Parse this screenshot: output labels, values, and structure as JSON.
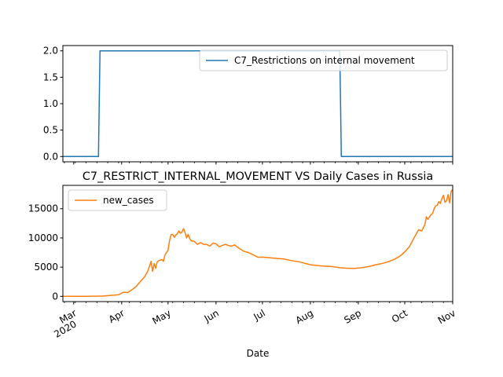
{
  "chart_data": [
    {
      "type": "line",
      "title": "",
      "xlabel": "",
      "ylabel": "",
      "ylim": [
        -0.1,
        2.1
      ],
      "yticks": [
        0.0,
        0.5,
        1.0,
        1.5,
        2.0
      ],
      "ytick_labels": [
        "0.0",
        "0.5",
        "1.0",
        "1.5",
        "2.0"
      ],
      "grid": false,
      "legend": "upper right",
      "series": [
        {
          "name": "C7_Restrictions on internal movement",
          "color": "#1f77b4",
          "x": [
            "2020-02-23",
            "2020-03-17",
            "2020-03-18",
            "2020-08-20",
            "2020-08-21",
            "2020-11-01"
          ],
          "values": [
            0,
            0,
            2,
            2,
            0,
            0
          ]
        }
      ]
    },
    {
      "type": "line",
      "title": "C7_RESTRICT_INTERNAL_MOVEMENT VS Daily Cases in Russia",
      "xlabel": "Date",
      "ylabel": "",
      "ylim": [
        -900,
        19000
      ],
      "yticks": [
        0,
        5000,
        10000,
        15000
      ],
      "ytick_labels": [
        "0",
        "5000",
        "10000",
        "15000"
      ],
      "grid": false,
      "legend": "upper left",
      "xlim": [
        "2020-02-23",
        "2020-11-01"
      ],
      "xticks": [
        {
          "date": "2020-03-01",
          "label": "Mar",
          "sublabel": "2020"
        },
        {
          "date": "2020-04-01",
          "label": "Apr"
        },
        {
          "date": "2020-05-01",
          "label": "May"
        },
        {
          "date": "2020-06-01",
          "label": "Jun"
        },
        {
          "date": "2020-07-01",
          "label": "Jul"
        },
        {
          "date": "2020-08-01",
          "label": "Aug"
        },
        {
          "date": "2020-09-01",
          "label": "Sep"
        },
        {
          "date": "2020-10-01",
          "label": "Oct"
        },
        {
          "date": "2020-11-01",
          "label": "Nov"
        }
      ],
      "series": [
        {
          "name": "new_cases",
          "color": "#ff7f0e",
          "x": [
            "2020-02-23",
            "2020-03-01",
            "2020-03-10",
            "2020-03-20",
            "2020-03-25",
            "2020-03-30",
            "2020-04-02",
            "2020-04-05",
            "2020-04-08",
            "2020-04-10",
            "2020-04-13",
            "2020-04-16",
            "2020-04-18",
            "2020-04-20",
            "2020-04-21",
            "2020-04-22",
            "2020-04-23",
            "2020-04-24",
            "2020-04-25",
            "2020-04-27",
            "2020-04-28",
            "2020-04-29",
            "2020-05-01",
            "2020-05-02",
            "2020-05-03",
            "2020-05-04",
            "2020-05-05",
            "2020-05-06",
            "2020-05-07",
            "2020-05-08",
            "2020-05-09",
            "2020-05-10",
            "2020-05-11",
            "2020-05-12",
            "2020-05-13",
            "2020-05-14",
            "2020-05-15",
            "2020-05-16",
            "2020-05-18",
            "2020-05-20",
            "2020-05-22",
            "2020-05-24",
            "2020-05-26",
            "2020-05-28",
            "2020-05-30",
            "2020-06-01",
            "2020-06-03",
            "2020-06-05",
            "2020-06-07",
            "2020-06-09",
            "2020-06-11",
            "2020-06-13",
            "2020-06-16",
            "2020-06-19",
            "2020-06-22",
            "2020-06-25",
            "2020-06-28",
            "2020-07-02",
            "2020-07-06",
            "2020-07-10",
            "2020-07-15",
            "2020-07-20",
            "2020-07-25",
            "2020-08-01",
            "2020-08-08",
            "2020-08-15",
            "2020-08-20",
            "2020-08-25",
            "2020-08-30",
            "2020-09-03",
            "2020-09-08",
            "2020-09-12",
            "2020-09-16",
            "2020-09-20",
            "2020-09-24",
            "2020-09-28",
            "2020-10-01",
            "2020-10-04",
            "2020-10-07",
            "2020-10-10",
            "2020-10-12",
            "2020-10-14",
            "2020-10-15",
            "2020-10-16",
            "2020-10-18",
            "2020-10-19",
            "2020-10-20",
            "2020-10-21",
            "2020-10-22",
            "2020-10-23",
            "2020-10-24",
            "2020-10-25",
            "2020-10-26",
            "2020-10-27",
            "2020-10-28",
            "2020-10-29",
            "2020-10-30",
            "2020-10-31",
            "2020-11-01"
          ],
          "values": [
            0,
            2,
            6,
            53,
            163,
            270,
            700,
            650,
            1200,
            1600,
            2500,
            3400,
            4400,
            6000,
            4300,
            5600,
            4800,
            5900,
            6100,
            6300,
            6000,
            7100,
            7900,
            9600,
            10600,
            10600,
            10100,
            10500,
            10700,
            11200,
            10800,
            11000,
            11600,
            10900,
            10000,
            10600,
            9900,
            9500,
            9400,
            8900,
            9200,
            8900,
            8900,
            8600,
            9100,
            9000,
            8500,
            8700,
            8900,
            8700,
            8600,
            8800,
            8200,
            7700,
            7500,
            7100,
            6700,
            6700,
            6600,
            6500,
            6400,
            6100,
            5900,
            5400,
            5200,
            5100,
            4900,
            4800,
            4800,
            4900,
            5100,
            5400,
            5600,
            5900,
            6300,
            6900,
            7600,
            8500,
            10000,
            11400,
            11200,
            12300,
            13600,
            13200,
            14000,
            14200,
            15000,
            15500,
            15600,
            16200,
            15900,
            16700,
            17300,
            16100,
            16400,
            17400,
            16000,
            18000,
            18300
          ]
        }
      ]
    }
  ]
}
